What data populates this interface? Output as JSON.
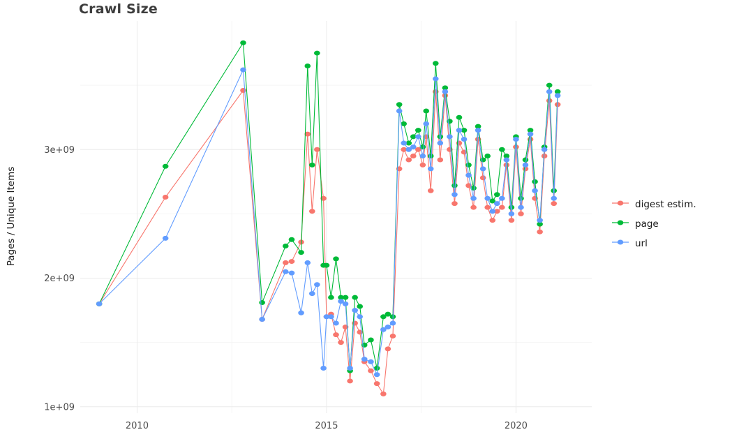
{
  "chart_data": {
    "type": "line",
    "title": "Crawl Size",
    "xlabel": "",
    "ylabel": "Pages / Unique Items",
    "legend_position": "right",
    "grid": true,
    "grid_color": "#ebebeb",
    "grid_minor_color": "#f5f5f5",
    "tick_label_color": "#4d4d4d",
    "xlim": [
      2008.5,
      2022
    ],
    "ylim": [
      950000000.0,
      4000000000.0
    ],
    "x_ticks": [
      {
        "v": 2010,
        "label": "2010"
      },
      {
        "v": 2015,
        "label": "2015"
      },
      {
        "v": 2020,
        "label": "2020"
      }
    ],
    "y_ticks": [
      {
        "v": 1000000000.0,
        "label": "1e+09"
      },
      {
        "v": 2000000000.0,
        "label": "2e+09"
      },
      {
        "v": 3000000000.0,
        "label": "3e+09"
      }
    ],
    "x": [
      2009.0,
      2010.75,
      2012.8,
      2013.3,
      2013.92,
      2014.08,
      2014.33,
      2014.5,
      2014.62,
      2014.75,
      2014.92,
      2015.0,
      2015.12,
      2015.25,
      2015.38,
      2015.5,
      2015.62,
      2015.75,
      2015.88,
      2016.0,
      2016.17,
      2016.33,
      2016.5,
      2016.62,
      2016.75,
      2016.92,
      2017.04,
      2017.17,
      2017.29,
      2017.42,
      2017.54,
      2017.63,
      2017.75,
      2017.88,
      2018.0,
      2018.13,
      2018.25,
      2018.38,
      2018.5,
      2018.63,
      2018.75,
      2018.88,
      2019.0,
      2019.13,
      2019.25,
      2019.38,
      2019.5,
      2019.63,
      2019.75,
      2019.88,
      2020.0,
      2020.13,
      2020.25,
      2020.38,
      2020.5,
      2020.63,
      2020.75,
      2020.88,
      2021.0,
      2021.1
    ],
    "series": [
      {
        "name": "digest estim.",
        "color": "#F8766D",
        "values": [
          1800000000.0,
          2630000000.0,
          3460000000.0,
          1680000000.0,
          2120000000.0,
          2130000000.0,
          2280000000.0,
          3120000000.0,
          2520000000.0,
          3000000000.0,
          2620000000.0,
          1700000000.0,
          1720000000.0,
          1560000000.0,
          1500000000.0,
          1620000000.0,
          1200000000.0,
          1650000000.0,
          1580000000.0,
          1350000000.0,
          1280000000.0,
          1180000000.0,
          1100000000.0,
          1450000000.0,
          1550000000.0,
          2850000000.0,
          3000000000.0,
          2920000000.0,
          2950000000.0,
          3000000000.0,
          2880000000.0,
          3100000000.0,
          2680000000.0,
          3450000000.0,
          2920000000.0,
          3420000000.0,
          3000000000.0,
          2580000000.0,
          3050000000.0,
          2980000000.0,
          2720000000.0,
          2550000000.0,
          3080000000.0,
          2780000000.0,
          2550000000.0,
          2450000000.0,
          2520000000.0,
          2550000000.0,
          2880000000.0,
          2450000000.0,
          3020000000.0,
          2500000000.0,
          2850000000.0,
          3080000000.0,
          2620000000.0,
          2360000000.0,
          2950000000.0,
          3380000000.0,
          2580000000.0,
          3350000000.0
        ]
      },
      {
        "name": "page",
        "color": "#00BA38",
        "values": [
          1800000000.0,
          2870000000.0,
          3830000000.0,
          1810000000.0,
          2250000000.0,
          2300000000.0,
          2200000000.0,
          3650000000.0,
          2880000000.0,
          3750000000.0,
          2100000000.0,
          2100000000.0,
          1850000000.0,
          2150000000.0,
          1850000000.0,
          1850000000.0,
          1280000000.0,
          1850000000.0,
          1780000000.0,
          1480000000.0,
          1520000000.0,
          1300000000.0,
          1700000000.0,
          1720000000.0,
          1700000000.0,
          3350000000.0,
          3200000000.0,
          3050000000.0,
          3100000000.0,
          3150000000.0,
          3020000000.0,
          3300000000.0,
          2950000000.0,
          3670000000.0,
          3100000000.0,
          3480000000.0,
          3220000000.0,
          2720000000.0,
          3250000000.0,
          3150000000.0,
          2880000000.0,
          2700000000.0,
          3180000000.0,
          2920000000.0,
          2950000000.0,
          2600000000.0,
          2650000000.0,
          3000000000.0,
          2950000000.0,
          2550000000.0,
          3100000000.0,
          2620000000.0,
          2920000000.0,
          3150000000.0,
          2750000000.0,
          2420000000.0,
          3020000000.0,
          3500000000.0,
          2680000000.0,
          3450000000.0
        ]
      },
      {
        "name": "url",
        "color": "#619CFF",
        "values": [
          1800000000.0,
          2310000000.0,
          3620000000.0,
          1680000000.0,
          2050000000.0,
          2040000000.0,
          1730000000.0,
          2120000000.0,
          1880000000.0,
          1950000000.0,
          1300000000.0,
          1700000000.0,
          1700000000.0,
          1650000000.0,
          1820000000.0,
          1800000000.0,
          1300000000.0,
          1750000000.0,
          1700000000.0,
          1370000000.0,
          1350000000.0,
          1250000000.0,
          1600000000.0,
          1620000000.0,
          1650000000.0,
          3300000000.0,
          3050000000.0,
          3000000000.0,
          3020000000.0,
          3100000000.0,
          2950000000.0,
          3200000000.0,
          2850000000.0,
          3550000000.0,
          3050000000.0,
          3450000000.0,
          3100000000.0,
          2650000000.0,
          3150000000.0,
          3080000000.0,
          2800000000.0,
          2620000000.0,
          3150000000.0,
          2850000000.0,
          2620000000.0,
          2520000000.0,
          2580000000.0,
          2620000000.0,
          2920000000.0,
          2500000000.0,
          3080000000.0,
          2550000000.0,
          2880000000.0,
          3120000000.0,
          2680000000.0,
          2450000000.0,
          3000000000.0,
          3450000000.0,
          2620000000.0,
          3420000000.0
        ]
      }
    ]
  }
}
